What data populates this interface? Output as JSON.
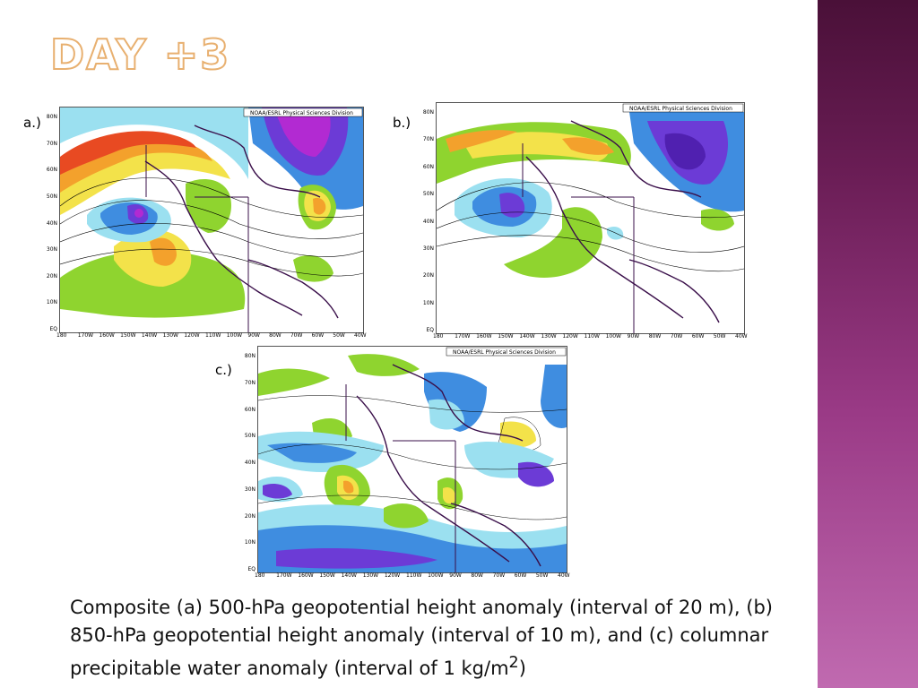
{
  "slide": {
    "title": "Day +3",
    "caption_main": "Composite (a) 500-hPa geopotential height anomaly (interval of 20 m), (b) 850-hPa geopotential height anomaly (interval of 10 m), and (c) columnar precipitable water anomaly (interval of 1 kg/m",
    "caption_sup": "2",
    "caption_end": ")"
  },
  "panels": [
    {
      "label": "a.)",
      "credit": "NOAA/ESRL Physical Sciences Division"
    },
    {
      "label": "b.)",
      "credit": "NOAA/ESRL Physical Sciences Division"
    },
    {
      "label": "c.)",
      "credit": "NOAA/ESRL Physical Sciences Division"
    }
  ],
  "axes": {
    "lat_ticks": [
      "80N",
      "70N",
      "60N",
      "50N",
      "40N",
      "30N",
      "20N",
      "10N",
      "EQ"
    ],
    "lon_ticks": [
      "180",
      "170W",
      "160W",
      "150W",
      "140W",
      "130W",
      "120W",
      "110W",
      "100W",
      "90W",
      "80W",
      "70W",
      "60W",
      "50W",
      "40W"
    ]
  },
  "colors": {
    "title_outline": "#e8b070",
    "sidebar_dark": "#4a1038",
    "sidebar_light": "#c06ab0"
  }
}
